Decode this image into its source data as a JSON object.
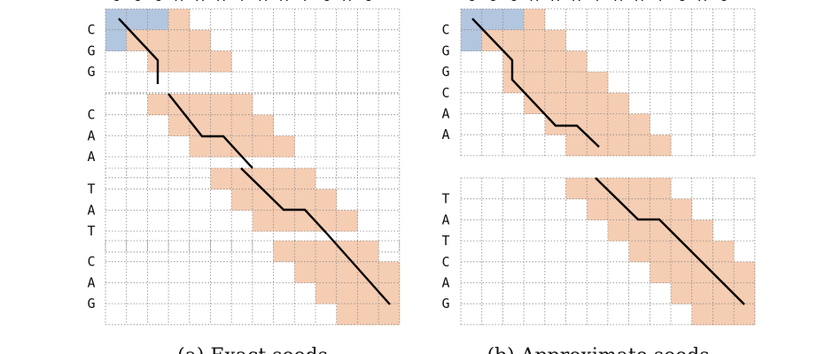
{
  "colors": {
    "seed": "#b3c6df",
    "band": "#f5cdb2",
    "grid": "#8a8a8a",
    "path": "#000000",
    "text": "#111111"
  },
  "panels": [
    {
      "id": "a",
      "caption": "(a) Exact seeds",
      "top_letters": [
        "G",
        "C",
        "G",
        "A",
        "A",
        "A",
        "T",
        "A",
        "A",
        "T",
        "C",
        "A",
        "G"
      ],
      "blocks": [
        {
          "rows": [
            "C",
            "G",
            "G"
          ],
          "seed_cells": [
            [
              0,
              0
            ],
            [
              0,
              1
            ],
            [
              0,
              2
            ],
            [
              1,
              0
            ]
          ],
          "band_cells": [
            [
              0,
              3
            ],
            [
              1,
              1
            ],
            [
              1,
              2
            ],
            [
              1,
              3
            ],
            [
              1,
              4
            ],
            [
              2,
              2
            ],
            [
              2,
              3
            ],
            [
              2,
              4
            ],
            [
              2,
              5
            ]
          ]
        },
        {
          "rows": [
            "C",
            "A",
            "A"
          ],
          "seed_cells": [],
          "band_cells": [
            [
              0,
              2
            ],
            [
              0,
              3
            ],
            [
              0,
              4
            ],
            [
              0,
              5
            ],
            [
              0,
              6
            ],
            [
              1,
              3
            ],
            [
              1,
              4
            ],
            [
              1,
              5
            ],
            [
              1,
              6
            ],
            [
              1,
              7
            ],
            [
              2,
              4
            ],
            [
              2,
              5
            ],
            [
              2,
              6
            ],
            [
              2,
              7
            ],
            [
              2,
              8
            ]
          ]
        },
        {
          "rows": [
            "T",
            "A",
            "T"
          ],
          "seed_cells": [],
          "band_cells": [
            [
              0,
              5
            ],
            [
              0,
              6
            ],
            [
              0,
              7
            ],
            [
              0,
              8
            ],
            [
              0,
              9
            ],
            [
              1,
              6
            ],
            [
              1,
              7
            ],
            [
              1,
              8
            ],
            [
              1,
              9
            ],
            [
              1,
              10
            ],
            [
              2,
              7
            ],
            [
              2,
              8
            ],
            [
              2,
              9
            ],
            [
              2,
              10
            ],
            [
              2,
              11
            ]
          ]
        },
        {
          "rows": [
            "C",
            "A",
            "G"
          ],
          "seed_cells": [],
          "band_cells": [
            [
              0,
              8
            ],
            [
              0,
              9
            ],
            [
              0,
              10
            ],
            [
              0,
              11
            ],
            [
              0,
              12
            ],
            [
              1,
              9
            ],
            [
              1,
              10
            ],
            [
              1,
              11
            ],
            [
              1,
              12
            ],
            [
              1,
              13
            ],
            [
              2,
              10
            ],
            [
              2,
              11
            ],
            [
              2,
              12
            ],
            [
              2,
              13
            ],
            [
              3,
              11
            ],
            [
              3,
              12
            ],
            [
              3,
              13
            ]
          ]
        }
      ]
    },
    {
      "id": "b",
      "caption": "(b) Approximate seeds",
      "top_letters": [
        "G",
        "C",
        "G",
        "A",
        "A",
        "A",
        "T",
        "A",
        "A",
        "T",
        "C",
        "A",
        "G"
      ],
      "blocks": [
        {
          "rows": [
            "C",
            "G",
            "G",
            "C",
            "A",
            "A"
          ],
          "seed_cells": [
            [
              0,
              0
            ],
            [
              0,
              1
            ],
            [
              0,
              2
            ],
            [
              1,
              0
            ]
          ],
          "band_cells": [
            [
              0,
              3
            ],
            [
              1,
              1
            ],
            [
              1,
              2
            ],
            [
              1,
              3
            ],
            [
              1,
              4
            ],
            [
              2,
              2
            ],
            [
              2,
              3
            ],
            [
              2,
              4
            ],
            [
              2,
              5
            ],
            [
              3,
              2
            ],
            [
              3,
              3
            ],
            [
              3,
              4
            ],
            [
              3,
              5
            ],
            [
              3,
              6
            ],
            [
              4,
              3
            ],
            [
              4,
              4
            ],
            [
              4,
              5
            ],
            [
              4,
              6
            ],
            [
              4,
              7
            ],
            [
              5,
              4
            ],
            [
              5,
              5
            ],
            [
              5,
              6
            ],
            [
              5,
              7
            ],
            [
              5,
              8
            ],
            [
              6,
              5
            ],
            [
              6,
              6
            ],
            [
              6,
              7
            ],
            [
              6,
              8
            ],
            [
              6,
              9
            ]
          ]
        },
        {
          "rows": [
            "T",
            "A",
            "T",
            "C",
            "A",
            "G"
          ],
          "seed_cells": [],
          "band_cells": [
            [
              0,
              5
            ],
            [
              0,
              6
            ],
            [
              0,
              7
            ],
            [
              0,
              8
            ],
            [
              0,
              9
            ],
            [
              1,
              6
            ],
            [
              1,
              7
            ],
            [
              1,
              8
            ],
            [
              1,
              9
            ],
            [
              1,
              10
            ],
            [
              2,
              7
            ],
            [
              2,
              8
            ],
            [
              2,
              9
            ],
            [
              2,
              10
            ],
            [
              2,
              11
            ],
            [
              3,
              8
            ],
            [
              3,
              9
            ],
            [
              3,
              10
            ],
            [
              3,
              11
            ],
            [
              3,
              12
            ],
            [
              4,
              9
            ],
            [
              4,
              10
            ],
            [
              4,
              11
            ],
            [
              4,
              12
            ],
            [
              4,
              13
            ],
            [
              5,
              10
            ],
            [
              5,
              11
            ],
            [
              5,
              12
            ],
            [
              5,
              13
            ],
            [
              6,
              11
            ],
            [
              6,
              12
            ],
            [
              6,
              13
            ]
          ]
        }
      ]
    }
  ]
}
